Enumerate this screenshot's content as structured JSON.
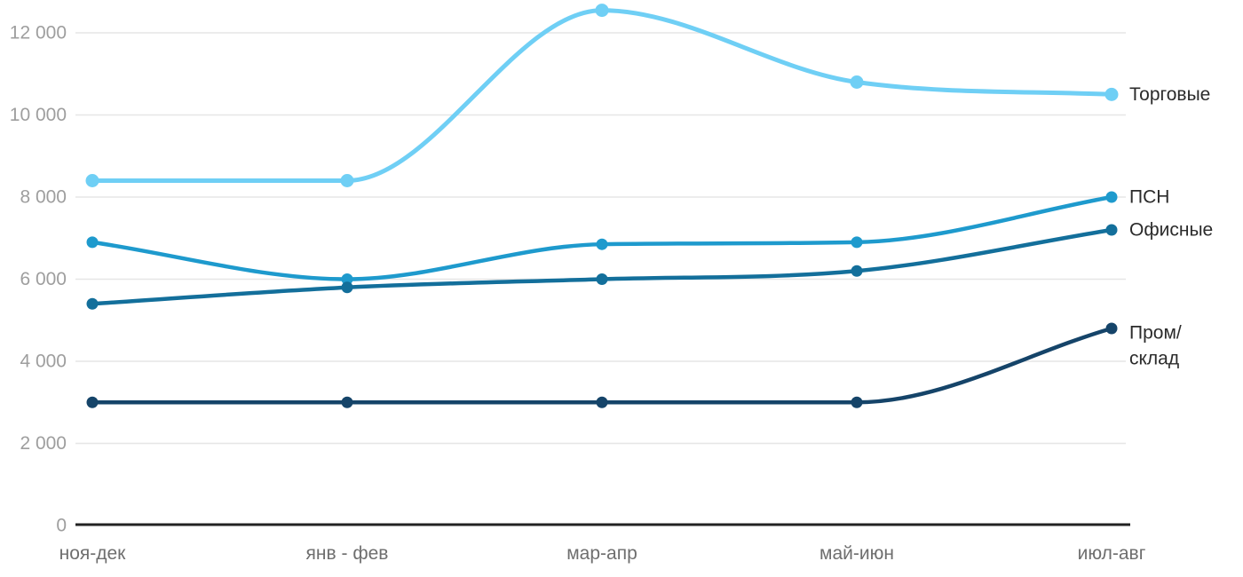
{
  "chart_data": {
    "type": "line",
    "title": "",
    "x_categories": [
      "ноя-дек",
      "янв - фев",
      "мар-апр",
      "май-июн",
      "июл-авг"
    ],
    "y_ticks": [
      "0",
      "2 000",
      "4 000",
      "6 000",
      "8 000",
      "10 000",
      "12 000"
    ],
    "y_tick_values": [
      0,
      2000,
      4000,
      6000,
      8000,
      10000,
      12000
    ],
    "ylim": [
      0,
      12800
    ],
    "grid": true,
    "legend_position": "labels-at-line-ends-right",
    "line_style": "smooth-spline-with-point-markers",
    "series": [
      {
        "name": "Торговые",
        "label_lines": [
          "Торговые"
        ],
        "color": "#6FCFF5",
        "values": [
          8400,
          8400,
          12550,
          10800,
          10500
        ]
      },
      {
        "name": "ПСН",
        "label_lines": [
          "ПСН"
        ],
        "color": "#1E9ACD",
        "values": [
          6900,
          6000,
          6850,
          6900,
          8000
        ]
      },
      {
        "name": "Офисные",
        "label_lines": [
          "Офисные"
        ],
        "color": "#136F9B",
        "values": [
          5400,
          5800,
          6000,
          6200,
          7200
        ]
      },
      {
        "name": "Пром/склад",
        "label_lines": [
          "Пром/",
          "склад"
        ],
        "color": "#154469",
        "values": [
          3000,
          3000,
          3000,
          3000,
          4800
        ]
      }
    ],
    "colors": {
      "background": "#FFFFFF",
      "grid": "#E6E6E6",
      "axis": "#222222",
      "y_tick_label": "#9E9E9E",
      "x_tick_label": "#6E6E6E",
      "series_label": "#2B2B2B"
    }
  }
}
